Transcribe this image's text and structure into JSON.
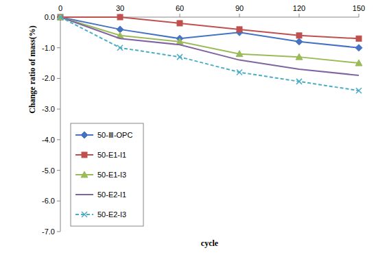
{
  "chart_data": {
    "type": "line",
    "x_label": "cycle",
    "y_label": "Change ratio of mass(%)",
    "x": [
      0,
      30,
      60,
      90,
      120,
      150
    ],
    "xlim": [
      0,
      150
    ],
    "xticks": [
      0,
      30,
      60,
      90,
      120,
      150
    ],
    "ylim": [
      -7,
      0
    ],
    "yticks": [
      {
        "value": 0,
        "label": "0.0"
      },
      {
        "value": -1,
        "label": "-1.0"
      },
      {
        "value": -2,
        "label": "-2.0"
      },
      {
        "value": -3,
        "label": "-3.0"
      },
      {
        "value": -4,
        "label": "-4.0"
      },
      {
        "value": -5,
        "label": "-5.0"
      },
      {
        "value": -6,
        "label": "-6.0"
      },
      {
        "value": -7,
        "label": "-7.0"
      }
    ],
    "grid": false,
    "legend": "lower left",
    "series": [
      {
        "name": "50-Ⅲ-OPC",
        "color": "#4472c4",
        "marker": "diamond",
        "line_style": "solid",
        "values": [
          0,
          -0.4,
          -0.7,
          -0.5,
          -0.8,
          -1.0
        ]
      },
      {
        "name": "50-E1-I1",
        "color": "#c0504d",
        "marker": "square",
        "line_style": "solid",
        "values": [
          0,
          0,
          -0.2,
          -0.4,
          -0.6,
          -0.7
        ]
      },
      {
        "name": "50-E1-I3",
        "color": "#9bbb59",
        "marker": "triangle",
        "line_style": "solid",
        "values": [
          0,
          -0.6,
          -0.8,
          -1.2,
          -1.3,
          -1.5
        ]
      },
      {
        "name": "50-E2-I1",
        "color": "#8064a2",
        "marker": "none",
        "line_style": "solid",
        "values": [
          0,
          -0.7,
          -0.9,
          -1.4,
          -1.7,
          -1.9
        ]
      },
      {
        "name": "50-E2-I3",
        "color": "#4bacc6",
        "marker": "x",
        "line_style": "dashed",
        "values": [
          0,
          -1.0,
          -1.3,
          -1.8,
          -2.1,
          -2.4
        ]
      }
    ]
  }
}
